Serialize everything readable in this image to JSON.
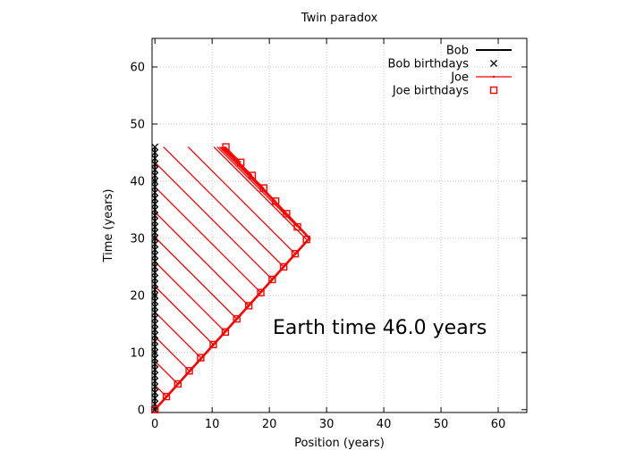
{
  "chart_data": {
    "type": "line",
    "title": "Twin paradox",
    "xlabel": "Position (years)",
    "ylabel": "Time (years)",
    "xlim": [
      -0.5,
      65
    ],
    "ylim": [
      -0.5,
      65
    ],
    "x_ticks": [
      0,
      10,
      20,
      30,
      40,
      50,
      60
    ],
    "y_ticks": [
      0,
      10,
      20,
      30,
      40,
      50,
      60
    ],
    "grid": true,
    "legend_position": "top-right",
    "annotation": "Earth time 46.0 years",
    "series": [
      {
        "name": "Bob",
        "color": "#000000",
        "x": [
          0,
          0
        ],
        "y": [
          0,
          46
        ]
      },
      {
        "name": "Bob birthdays",
        "color": "#000000",
        "marker": "x",
        "x": [
          0,
          0,
          0,
          0,
          0,
          0,
          0,
          0,
          0,
          0,
          0,
          0,
          0,
          0,
          0,
          0,
          0,
          0,
          0,
          0,
          0,
          0,
          0,
          0,
          0,
          0,
          0,
          0,
          0,
          0,
          0,
          0,
          0,
          0,
          0,
          0,
          0,
          0,
          0,
          0,
          0,
          0,
          0,
          0,
          0,
          0,
          0
        ],
        "y": [
          0,
          1,
          2,
          3,
          4,
          5,
          6,
          7,
          8,
          9,
          10,
          11,
          12,
          13,
          14,
          15,
          16,
          17,
          18,
          19,
          20,
          21,
          22,
          23,
          24,
          25,
          26,
          27,
          28,
          29,
          30,
          31,
          32,
          33,
          34,
          35,
          36,
          37,
          38,
          39,
          40,
          41,
          42,
          43,
          44,
          45,
          46
        ]
      },
      {
        "name": "Joe",
        "color": "#ff0000",
        "x": [
          0,
          27,
          12
        ],
        "y": [
          0,
          30,
          46
        ]
      },
      {
        "name": "Joe birthdays",
        "color": "#ff0000",
        "marker": "square",
        "x": [
          0,
          2,
          4,
          6,
          8,
          10.2,
          12.3,
          14.3,
          16.4,
          18.5,
          20.5,
          22.5,
          24.5,
          26.5,
          24.9,
          23,
          21.1,
          19,
          17,
          15,
          12.4
        ],
        "y": [
          0,
          2.3,
          4.5,
          6.8,
          9.1,
          11.4,
          13.6,
          15.9,
          18.2,
          20.5,
          22.8,
          25,
          27.3,
          29.8,
          32,
          34.3,
          36.5,
          38.8,
          41,
          43.3,
          46
        ]
      }
    ],
    "signal_lines": {
      "color": "#ff0000",
      "start_x": [
        0,
        2,
        4,
        6,
        8,
        10.2,
        12.3,
        14.3,
        16.4,
        18.5,
        20.5,
        22.5,
        24.5,
        26.5,
        24.9,
        23,
        21.1,
        19,
        17,
        15,
        12.4
      ],
      "start_y": [
        0,
        2.3,
        4.5,
        6.8,
        9.1,
        11.4,
        13.6,
        15.9,
        18.2,
        20.5,
        22.8,
        25,
        27.3,
        29.8,
        32,
        34.3,
        36.5,
        38.8,
        41,
        43.3,
        46
      ],
      "end_time": 46
    }
  }
}
